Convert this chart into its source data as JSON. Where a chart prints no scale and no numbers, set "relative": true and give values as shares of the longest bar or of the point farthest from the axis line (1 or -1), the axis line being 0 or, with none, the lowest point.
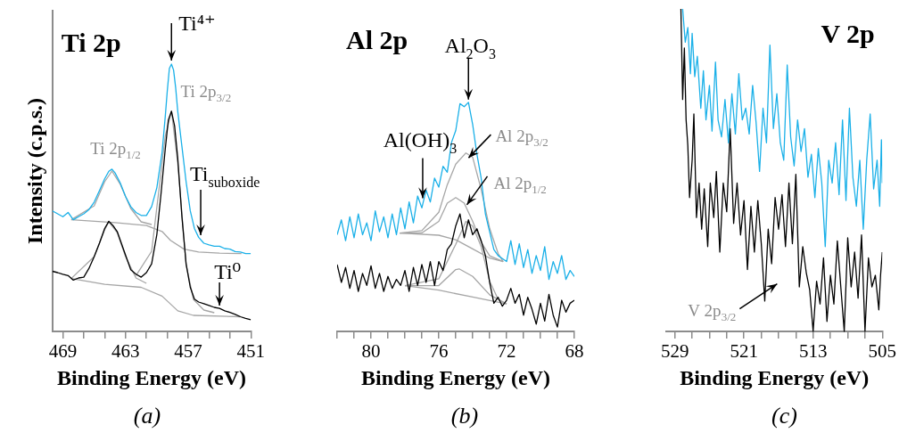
{
  "chart_data": [
    {
      "type": "line",
      "title": "Ti 2p",
      "xlabel": "Binding Energy (eV)",
      "ylabel": "Intensity (c.p.s.)",
      "relative": true,
      "tick_labels": "x",
      "xlim": [
        470,
        451
      ],
      "xticks": [
        469,
        {
          "value": 467,
          "label": null
        },
        {
          "value": 465,
          "label": null
        },
        463,
        {
          "value": 461,
          "label": null
        },
        {
          "value": 459,
          "label": null
        },
        457,
        {
          "value": 455,
          "label": null
        },
        {
          "value": 453,
          "label": null
        },
        451
      ],
      "series": [
        {
          "color": "#1ab0e8",
          "x": [
            470,
            469.5,
            469,
            468.5,
            468,
            467.5,
            467,
            466.5,
            466,
            465.5,
            465,
            464.6,
            464.3,
            464,
            463.5,
            463,
            462.5,
            462,
            461.5,
            461,
            460.5,
            460,
            459.5,
            459.2,
            459,
            458.8,
            458.6,
            458.4,
            458.2,
            458,
            457.6,
            457.2,
            456.8,
            456.4,
            456,
            455.5,
            455,
            454.5,
            454,
            453.5,
            453,
            452.5,
            452,
            451.5,
            451
          ],
          "values": [
            0.451,
            0.44,
            0.429,
            0.445,
            0.418,
            0.429,
            0.44,
            0.456,
            0.484,
            0.527,
            0.571,
            0.599,
            0.607,
            0.593,
            0.555,
            0.505,
            0.467,
            0.445,
            0.434,
            0.434,
            0.467,
            0.538,
            0.67,
            0.802,
            0.901,
            0.984,
            1,
            0.978,
            0.912,
            0.824,
            0.692,
            0.56,
            0.451,
            0.385,
            0.352,
            0.33,
            0.324,
            0.319,
            0.319,
            0.31,
            0.308,
            0.299,
            0.297,
            0.291,
            0.291
          ]
        },
        {
          "color": "#000000",
          "x": [
            470,
            469.5,
            469,
            468.5,
            468,
            467.5,
            467,
            466.5,
            466,
            465.5,
            465,
            464.6,
            464.2,
            463.8,
            463.4,
            463,
            462.5,
            462,
            461.5,
            461,
            460.5,
            460,
            459.6,
            459.2,
            458.9,
            458.6,
            458.3,
            458,
            457.6,
            457.2,
            456.8,
            456.4,
            456,
            455.5,
            455,
            454.5,
            454,
            453.5,
            453,
            452.5,
            452,
            451.5,
            451
          ],
          "values": [
            0.225,
            0.22,
            0.214,
            0.209,
            0.192,
            0.2,
            0.203,
            0.236,
            0.28,
            0.33,
            0.385,
            0.412,
            0.396,
            0.374,
            0.33,
            0.286,
            0.231,
            0.214,
            0.203,
            0.22,
            0.253,
            0.363,
            0.516,
            0.681,
            0.791,
            0.824,
            0.769,
            0.648,
            0.429,
            0.253,
            0.165,
            0.121,
            0.11,
            0.104,
            0.097,
            0.09,
            0.086,
            0.077,
            0.071,
            0.064,
            0.055,
            0.049,
            0.044
          ]
        },
        {
          "color": "#a6a6a6",
          "x": [
            468.2,
            464,
            461,
            459.5,
            458.7,
            457.4,
            456,
            454,
            451.9
          ],
          "values": [
            0.418,
            0.407,
            0.396,
            0.374,
            0.341,
            0.308,
            0.297,
            0.293,
            0.291
          ]
        },
        {
          "color": "#a6a6a6",
          "x": [
            468.2,
            466,
            465,
            464.3,
            463.5,
            462.5,
            461.5,
            460.5
          ],
          "values": [
            0.418,
            0.47,
            0.56,
            0.6,
            0.55,
            0.46,
            0.41,
            0.4
          ]
        },
        {
          "color": "#a6a6a6",
          "x": [
            468.2,
            465,
            461.5,
            459.5,
            458,
            456.5,
            452
          ],
          "values": [
            0.198,
            0.176,
            0.165,
            0.132,
            0.077,
            0.06,
            0.055
          ]
        },
        {
          "color": "#a6a6a6",
          "x": [
            468.2,
            466,
            465,
            464.6,
            463.8,
            463,
            462,
            461
          ],
          "values": [
            0.198,
            0.28,
            0.38,
            0.41,
            0.37,
            0.28,
            0.2,
            0.18
          ]
        },
        {
          "color": "#a6a6a6",
          "x": [
            462,
            460.5,
            459.8,
            459.2,
            458.6,
            458,
            457.2,
            456.5,
            455.5,
            454.5
          ],
          "values": [
            0.209,
            0.3,
            0.53,
            0.73,
            0.824,
            0.63,
            0.25,
            0.12,
            0.08,
            0.07
          ]
        }
      ],
      "annotations": [
        {
          "text": "Ti⁴⁺",
          "x": 458.6,
          "y": 1
        },
        {
          "text": "Ti 2p$_{3/2}$",
          "x": 458.4,
          "y": 0.97
        },
        {
          "text": "Ti 2p$_{1/2}$",
          "x": 464.3,
          "y": 0.61
        },
        {
          "text": "Ti$_{suboxide}$",
          "x": 455.8,
          "y": 0.35
        },
        {
          "text": "Ti⁰",
          "x": 454,
          "y": 0.09
        },
        "(a)"
      ]
    },
    {
      "type": "line",
      "title": "Al 2p",
      "xlabel": "Binding Energy (eV)",
      "relative": true,
      "tick_labels": "x",
      "xlim": [
        82,
        68
      ],
      "xticks": [
        {
          "value": 82,
          "label": null
        },
        {
          "value": 81,
          "label": null
        },
        80,
        {
          "value": 79,
          "label": null
        },
        {
          "value": 78,
          "label": null
        },
        {
          "value": 77,
          "label": null
        },
        76,
        {
          "value": 75,
          "label": null
        },
        {
          "value": 74,
          "label": null
        },
        {
          "value": 73,
          "label": null
        },
        72,
        {
          "value": 71,
          "label": null
        },
        {
          "value": 70,
          "label": null
        },
        {
          "value": 69,
          "label": null
        },
        68
      ],
      "series": [
        {
          "color": "#1ab0e8",
          "x": [
            82,
            81.75,
            81.5,
            81.25,
            81,
            80.75,
            80.5,
            80.25,
            80,
            79.75,
            79.5,
            79.25,
            79,
            78.75,
            78.5,
            78.25,
            78,
            77.75,
            77.5,
            77.25,
            77,
            76.75,
            76.5,
            76.25,
            76,
            75.75,
            75.5,
            75.25,
            75,
            74.75,
            74.5,
            74.25,
            74,
            73.75,
            73.5,
            73.25,
            73,
            72.75,
            72.5,
            72.25,
            72,
            71.75,
            71.5,
            71.25,
            71,
            70.75,
            70.5,
            70.25,
            70,
            69.75,
            69.5,
            69.25,
            69,
            68.75,
            68.5,
            68.25,
            68
          ],
          "values": [
            0.422,
            0.487,
            0.396,
            0.5,
            0.409,
            0.513,
            0.422,
            0.474,
            0.396,
            0.526,
            0.435,
            0.5,
            0.409,
            0.513,
            0.422,
            0.539,
            0.448,
            0.565,
            0.474,
            0.591,
            0.539,
            0.617,
            0.565,
            0.669,
            0.63,
            0.721,
            0.695,
            0.825,
            0.877,
            0.994,
            0.981,
            1,
            0.903,
            0.773,
            0.669,
            0.513,
            0.435,
            0.357,
            0.331,
            0.318,
            0.305,
            0.396,
            0.292,
            0.383,
            0.279,
            0.357,
            0.253,
            0.331,
            0.266,
            0.37,
            0.227,
            0.305,
            0.253,
            0.331,
            0.227,
            0.266,
            0.24
          ]
        },
        {
          "color": "#000000",
          "x": [
            82,
            81.75,
            81.5,
            81.25,
            81,
            80.75,
            80.5,
            80.25,
            80,
            79.75,
            79.5,
            79.25,
            79,
            78.75,
            78.5,
            78.25,
            78,
            77.75,
            77.5,
            77.25,
            77,
            76.75,
            76.5,
            76.25,
            76,
            75.75,
            75.5,
            75.25,
            75,
            74.75,
            74.5,
            74.25,
            74,
            73.75,
            73.5,
            73.25,
            73,
            72.75,
            72.5,
            72.25,
            72,
            71.75,
            71.5,
            71.25,
            71,
            70.75,
            70.5,
            70.25,
            70,
            69.75,
            69.5,
            69.25,
            69,
            68.75,
            68.5,
            68.25,
            68
          ],
          "values": [
            0.292,
            0.214,
            0.279,
            0.188,
            0.266,
            0.175,
            0.253,
            0.201,
            0.286,
            0.188,
            0.253,
            0.175,
            0.24,
            0.188,
            0.227,
            0.201,
            0.266,
            0.175,
            0.279,
            0.201,
            0.292,
            0.214,
            0.305,
            0.201,
            0.305,
            0.266,
            0.357,
            0.383,
            0.461,
            0.513,
            0.409,
            0.487,
            0.422,
            0.448,
            0.396,
            0.331,
            0.214,
            0.123,
            0.149,
            0.11,
            0.136,
            0.188,
            0.123,
            0.162,
            0.071,
            0.149,
            0.097,
            0.032,
            0.123,
            0.045,
            0.162,
            0.071,
            0.019,
            0.136,
            0.084,
            0.123,
            0.136
          ]
        },
        {
          "color": "#a6a6a6",
          "x": [
            78.3,
            76,
            75,
            74,
            73,
            72.2
          ],
          "values": [
            0.429,
            0.42,
            0.4,
            0.36,
            0.32,
            0.305
          ]
        },
        {
          "color": "#a6a6a6",
          "x": [
            78.3,
            77,
            76,
            75.5,
            75,
            74.4,
            74,
            73.5,
            73,
            72.5,
            72.2
          ],
          "values": [
            0.429,
            0.44,
            0.52,
            0.64,
            0.73,
            0.779,
            0.76,
            0.62,
            0.45,
            0.34,
            0.305
          ]
        },
        {
          "color": "#a6a6a6",
          "x": [
            78.3,
            77,
            76,
            75.5,
            75,
            74.5,
            74,
            73.5,
            73,
            72.2
          ],
          "values": [
            0.429,
            0.43,
            0.48,
            0.56,
            0.584,
            0.56,
            0.48,
            0.39,
            0.33,
            0.305
          ]
        },
        {
          "color": "#a6a6a6",
          "x": [
            78,
            76,
            74,
            72
          ],
          "values": [
            0.2,
            0.18,
            0.15,
            0.12
          ]
        },
        {
          "color": "#a6a6a6",
          "x": [
            78,
            76,
            75,
            74.4,
            74,
            73.5,
            73,
            72.5,
            72
          ],
          "values": [
            0.2,
            0.23,
            0.38,
            0.48,
            0.46,
            0.37,
            0.22,
            0.14,
            0.12
          ]
        },
        {
          "color": "#a6a6a6",
          "x": [
            78,
            76,
            75,
            74.8,
            74,
            73,
            72
          ],
          "values": [
            0.2,
            0.2,
            0.27,
            0.273,
            0.24,
            0.16,
            0.12
          ]
        }
      ],
      "annotations": [
        {
          "text": "Al$_{2}$O$_{3}$",
          "x": 74.25,
          "y": 1
        },
        {
          "text": "Al(OH)$_{3}$",
          "x": 76.95,
          "y": 0.57
        },
        {
          "text": "Al 2p$_{3/2}$",
          "x": 74.4,
          "y": 0.75
        },
        {
          "text": "Al 2p$_{1/2}$",
          "x": 74.5,
          "y": 0.545
        },
        "(b)"
      ]
    },
    {
      "type": "line",
      "title": "V 2p",
      "xlabel": "Binding Energy (eV)",
      "relative": true,
      "tick_labels": "x",
      "xlim": [
        530,
        505
      ],
      "xticks": [
        529,
        {
          "value": 527,
          "label": null
        },
        {
          "value": 525,
          "label": null
        },
        {
          "value": 523,
          "label": null
        },
        521,
        {
          "value": 519,
          "label": null
        },
        {
          "value": 517,
          "label": null
        },
        {
          "value": 515,
          "label": null
        },
        513,
        {
          "value": 511,
          "label": null
        },
        {
          "value": 509,
          "label": null
        },
        {
          "value": 507,
          "label": null
        },
        505
      ],
      "series": [
        {
          "color": "#1ab0e8",
          "x": [
            528.1,
            527.8,
            527.5,
            527.2,
            527,
            526.7,
            526.4,
            526,
            525.7,
            525.4,
            525,
            524.7,
            524.3,
            524,
            523.6,
            523.2,
            522.8,
            522.4,
            522,
            521.6,
            521.2,
            520.8,
            520.4,
            520,
            519.6,
            519.2,
            518.8,
            518.4,
            518,
            517.6,
            517.2,
            516.8,
            516.4,
            516,
            515.6,
            515.2,
            514.8,
            514.4,
            514,
            513.6,
            513.2,
            512.8,
            512.4,
            512,
            511.6,
            511.2,
            510.8,
            510.4,
            510,
            509.6,
            509.2,
            508.8,
            508.4,
            508,
            507.6,
            507.2,
            506.8,
            506.4,
            506,
            505.6,
            505.3,
            505.1,
            505
          ],
          "values": [
            1,
            0.897,
            0.942,
            0.799,
            0.924,
            0.79,
            0.853,
            0.692,
            0.808,
            0.656,
            0.763,
            0.621,
            0.835,
            0.656,
            0.603,
            0.719,
            0.585,
            0.737,
            0.612,
            0.799,
            0.656,
            0.692,
            0.612,
            0.763,
            0.647,
            0.496,
            0.692,
            0.585,
            0.888,
            0.629,
            0.737,
            0.585,
            0.531,
            0.826,
            0.603,
            0.513,
            0.656,
            0.558,
            0.629,
            0.478,
            0.549,
            0.415,
            0.567,
            0.46,
            0.263,
            0.531,
            0.46,
            0.585,
            0.424,
            0.656,
            0.406,
            0.692,
            0.478,
            0.388,
            0.531,
            0.317,
            0.531,
            0.674,
            0.442,
            0.531,
            0.388,
            0.594,
            0.46
          ]
        },
        {
          "color": "#000000",
          "x": [
            528.3,
            528.1,
            527.9,
            527.7,
            527.5,
            527.3,
            527,
            526.8,
            526.5,
            526.2,
            525.9,
            525.6,
            525.2,
            524.9,
            524.5,
            524.2,
            523.8,
            523.4,
            523,
            522.6,
            522.2,
            521.8,
            521.4,
            521,
            520.6,
            520.2,
            519.8,
            519.4,
            519,
            518.6,
            518.2,
            517.8,
            517.4,
            517,
            516.6,
            516.2,
            515.8,
            515.4,
            515,
            514.6,
            514.2,
            513.8,
            513.4,
            513,
            512.6,
            512.2,
            511.8,
            511.4,
            511,
            510.6,
            510.2,
            509.8,
            509.4,
            509,
            508.6,
            508.2,
            507.8,
            507.4,
            507,
            506.6,
            506.2,
            505.8,
            505.4,
            505.2,
            505
          ],
          "values": [
            1,
            0.719,
            0.879,
            0.656,
            0.576,
            0.415,
            0.531,
            0.674,
            0.353,
            0.46,
            0.317,
            0.442,
            0.263,
            0.46,
            0.353,
            0.496,
            0.246,
            0.46,
            0.371,
            0.629,
            0.335,
            0.46,
            0.299,
            0.406,
            0.192,
            0.388,
            0.246,
            0.406,
            0.272,
            0.094,
            0.317,
            0.21,
            0.415,
            0.317,
            0.424,
            0.263,
            0.46,
            0.272,
            0.487,
            0.138,
            0.263,
            0.183,
            0.129,
            0,
            0.156,
            0.085,
            0.228,
            0.031,
            0.174,
            0.085,
            0.281,
            0.138,
            0,
            0.29,
            0.138,
            0.246,
            0.103,
            0.299,
            0,
            0.228,
            0.138,
            0.174,
            0.067,
            0.174,
            0.246
          ]
        }
      ],
      "annotations": [
        "V 2p$_{3/2}$",
        "(c)"
      ]
    }
  ]
}
